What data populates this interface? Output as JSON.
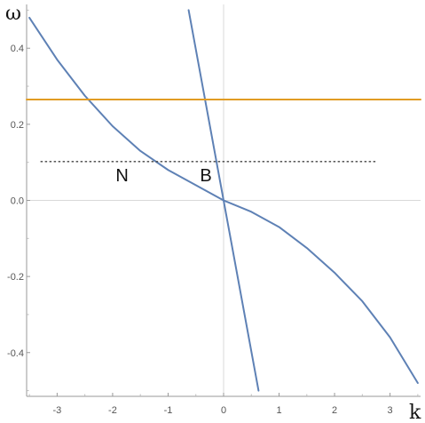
{
  "chart_data": {
    "type": "line",
    "xlabel": "k",
    "ylabel": "ω",
    "xlim": [
      -3.55,
      3.55
    ],
    "ylim": [
      -0.515,
      0.515
    ],
    "x_ticks": [
      -3,
      -2,
      -1,
      0,
      1,
      2,
      3
    ],
    "x_tick_labels": [
      "-3",
      "-2",
      "-1",
      "0",
      "1",
      "2",
      "3"
    ],
    "y_ticks": [
      -0.4,
      -0.2,
      0.0,
      0.2,
      0.4
    ],
    "y_tick_labels": [
      "-0.4",
      "-0.2",
      "0.0",
      "0.2",
      "0.4"
    ],
    "grid": false,
    "series": [
      {
        "color": "#5e81b5",
        "style": "solid",
        "x": [
          -3.5,
          -3.0,
          -2.5,
          -2.0,
          -1.5,
          -1.0,
          -0.5,
          0.0,
          0.5,
          1.0,
          1.5,
          2.0,
          2.5,
          3.0,
          3.5
        ],
        "y": [
          0.48,
          0.37,
          0.275,
          0.195,
          0.13,
          0.08,
          0.04,
          0.0,
          -0.03,
          -0.07,
          -0.125,
          -0.19,
          -0.265,
          -0.36,
          -0.48
        ]
      },
      {
        "color": "#5e81b5",
        "style": "solid",
        "x": [
          -0.63,
          0.63
        ],
        "y": [
          0.5,
          -0.5
        ]
      },
      {
        "color": "#e19c24",
        "style": "solid",
        "x": [
          -3.55,
          3.55
        ],
        "y": [
          0.265,
          0.265
        ]
      },
      {
        "color": "#444444",
        "style": "dotted",
        "x": [
          -3.3,
          2.75
        ],
        "y": [
          0.102,
          0.102
        ]
      }
    ],
    "annotations": [
      {
        "text": "N",
        "x": -1.83,
        "y": 0.05
      },
      {
        "text": "B",
        "x": -0.32,
        "y": 0.05
      }
    ]
  }
}
